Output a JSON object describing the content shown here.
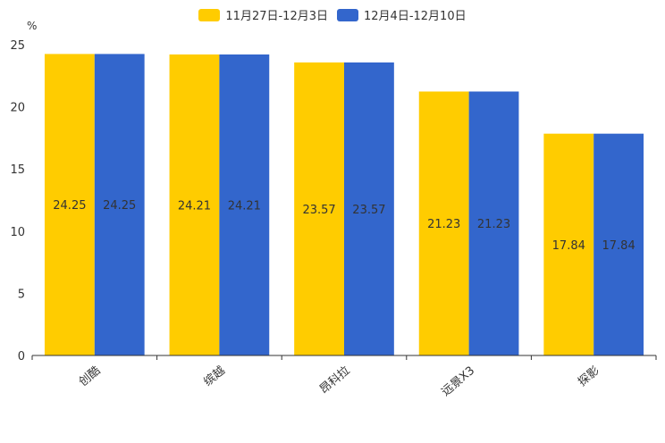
{
  "chart_data": {
    "type": "bar",
    "unit": "%",
    "categories": [
      "创酷",
      "缤越",
      "昂科拉",
      "远景X3",
      "探影"
    ],
    "series": [
      {
        "name": "11月27日-12月3日",
        "color": "#FFCC00",
        "values": [
          24.25,
          24.21,
          23.57,
          21.23,
          17.84
        ]
      },
      {
        "name": "12月4日-12月10日",
        "color": "#3366CC",
        "values": [
          24.25,
          24.21,
          23.57,
          21.23,
          17.84
        ]
      }
    ],
    "ylim": [
      0,
      25
    ],
    "yticks": [
      0,
      5,
      10,
      15,
      20,
      25
    ],
    "grid": false,
    "legend_position": "top-center",
    "title": "",
    "xlabel": "",
    "ylabel": "%"
  }
}
